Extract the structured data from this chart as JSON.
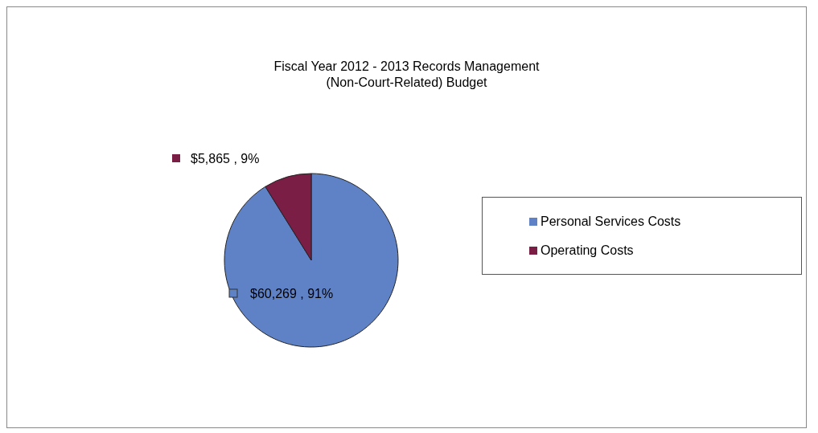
{
  "chart_data": {
    "type": "pie",
    "title": "Fiscal Year 2012 - 2013 Records Management\n(Non-Court-Related) Budget",
    "categories": [
      "Personal Services Costs",
      "Operating Costs"
    ],
    "values": [
      60269,
      5865
    ],
    "colors": [
      "#5f82c6",
      "#7b1e45"
    ],
    "value_labels": [
      "$60,269 , 91%",
      "$5,865 , 9%"
    ],
    "legend": "right"
  }
}
